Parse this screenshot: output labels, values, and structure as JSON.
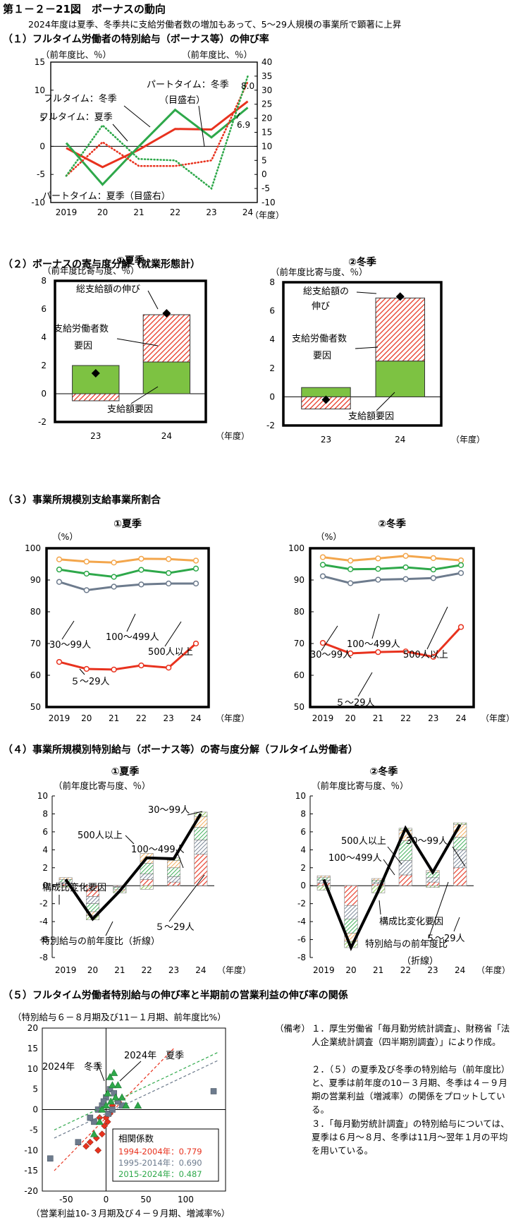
{
  "header": {
    "title": "第１－２－21図　ボーナスの動向",
    "subtitle": "2024年度は夏季、冬季共に支給労働者数の増加もあって、5～29人規模の事業所で顕著に上昇"
  },
  "sections": {
    "s1": "（１）フルタイム労働者の特別給与（ボーナス等）の伸び率",
    "s2": "（２）ボーナスの寄与度分解（就業形態計）",
    "s3": "（３）事業所規模別支給事業所割合",
    "s4": "（４）事業所規模別特別給与（ボーナス等）の寄与度分解（フルタイム労働者）",
    "s5": "（５）フルタイム労働者特別給与の伸び率と半期前の営業利益の伸び率の関係"
  },
  "colors": {
    "red": "#e8321e",
    "green": "#2ea84a",
    "gray": "#6d7b8d",
    "orange": "#f3a64c",
    "lime": "#7dc242",
    "black": "#000000"
  },
  "chart_data": [
    {
      "id": "c1",
      "type": "line",
      "x": [
        2019,
        2020,
        2021,
        2022,
        2023,
        2024
      ],
      "xticks": [
        "2019",
        "20",
        "21",
        "22",
        "23",
        "24"
      ],
      "xunit": "（年度）",
      "ylabel_left": "（前年度比、％）",
      "ylabel_right": "（前年度比、％）",
      "ylim_left": [
        -10,
        15
      ],
      "yticks_left": [
        -10,
        -5,
        0,
        5,
        10,
        15
      ],
      "ylim_right": [
        -10,
        40
      ],
      "yticks_right": [
        -10,
        -5,
        0,
        5,
        10,
        15,
        20,
        25,
        30,
        35,
        40
      ],
      "series": [
        {
          "name": "フルタイム：冬季",
          "axis": "left",
          "style": "solid",
          "color": "red",
          "values": [
            -0.3,
            -3.7,
            -0.6,
            3.1,
            3.0,
            8.0
          ]
        },
        {
          "name": "フルタイム：夏季",
          "axis": "left",
          "style": "solid",
          "color": "green",
          "values": [
            0.6,
            -6.8,
            0.0,
            6.5,
            1.6,
            6.9
          ]
        },
        {
          "name": "パートタイム：冬季（目盛右）",
          "axis": "right",
          "style": "dotted",
          "color": "red",
          "values": [
            -0.5,
            11.5,
            3.0,
            3.0,
            5.0,
            33.0
          ]
        },
        {
          "name": "パートタイム：夏季（目盛右）",
          "axis": "right",
          "style": "dotted",
          "color": "green",
          "values": [
            -0.5,
            17.5,
            5.5,
            5.0,
            -5.0,
            35.0
          ]
        }
      ],
      "annotations": [
        "8.0",
        "6.9"
      ]
    },
    {
      "id": "c2a",
      "type": "stacked-bar",
      "subtitle": "①夏季",
      "ylabel": "（前年度比寄与度、％）",
      "xunit": "（年度）",
      "categories": [
        "23",
        "24"
      ],
      "ylim": [
        -2,
        8
      ],
      "yticks": [
        -2,
        0,
        2,
        4,
        6,
        8
      ],
      "series": [
        {
          "name": "支給額要因",
          "values": [
            2.0,
            2.25
          ]
        },
        {
          "name": "支給労働者数要因",
          "values": [
            -0.5,
            3.35
          ]
        }
      ],
      "total": {
        "name": "総支給額の伸び",
        "values": [
          1.45,
          5.7
        ]
      }
    },
    {
      "id": "c2b",
      "type": "stacked-bar",
      "subtitle": "②冬季",
      "ylabel": "（前年度比寄与度、％）",
      "xunit": "（年度）",
      "categories": [
        "23",
        "24"
      ],
      "ylim": [
        -2,
        8
      ],
      "yticks": [
        -2,
        0,
        2,
        4,
        6,
        8
      ],
      "series": [
        {
          "name": "支給額要因",
          "values": [
            0.65,
            2.5
          ]
        },
        {
          "name": "支給労働者数要因",
          "values": [
            -0.85,
            4.4
          ]
        }
      ],
      "total": {
        "name": "総支給額の伸び",
        "values": [
          -0.2,
          7.0
        ]
      }
    },
    {
      "id": "c3a",
      "type": "line",
      "subtitle": "①夏季",
      "ylabel": "（%）",
      "xunit": "（年度）",
      "xticks": [
        "2019",
        "20",
        "21",
        "22",
        "23",
        "24"
      ],
      "ylim": [
        50,
        100
      ],
      "yticks": [
        50,
        60,
        70,
        80,
        90,
        100
      ],
      "series": [
        {
          "name": "500人以上",
          "color": "orange",
          "values": [
            96.5,
            95.8,
            95.5,
            96.7,
            96.6,
            96.1
          ]
        },
        {
          "name": "100～499人",
          "color": "green",
          "values": [
            93.3,
            92.0,
            91.0,
            93.2,
            92.2,
            93.6
          ]
        },
        {
          "name": "30～99人",
          "color": "gray",
          "values": [
            89.4,
            86.8,
            87.9,
            88.6,
            88.9,
            88.9
          ]
        },
        {
          "name": "５～29人",
          "color": "red",
          "values": [
            64.2,
            62.0,
            61.8,
            63.1,
            62.4,
            70.0
          ]
        }
      ]
    },
    {
      "id": "c3b",
      "type": "line",
      "subtitle": "②冬季",
      "ylabel": "（%）",
      "xunit": "（年度）",
      "xticks": [
        "2019",
        "20",
        "21",
        "22",
        "23",
        "24"
      ],
      "ylim": [
        50,
        100
      ],
      "yticks": [
        50,
        60,
        70,
        80,
        90,
        100
      ],
      "series": [
        {
          "name": "500人以上",
          "color": "orange",
          "values": [
            97.2,
            96.1,
            96.8,
            97.6,
            96.9,
            96.2
          ]
        },
        {
          "name": "100～499人",
          "color": "green",
          "values": [
            94.8,
            93.4,
            93.5,
            94.0,
            93.3,
            94.7
          ]
        },
        {
          "name": "30～99人",
          "color": "gray",
          "values": [
            91.2,
            89.0,
            90.1,
            90.3,
            90.6,
            92.2
          ]
        },
        {
          "name": "５～29人",
          "color": "red",
          "values": [
            70.2,
            66.9,
            67.3,
            67.5,
            65.8,
            75.2
          ]
        }
      ]
    },
    {
      "id": "c4a",
      "type": "stacked-bar",
      "subtitle": "①夏季",
      "ylabel": "（前年度比寄与度、％）",
      "xunit": "（年度）",
      "categories": [
        "2019",
        "20",
        "21",
        "22",
        "23",
        "24"
      ],
      "ylim": [
        -8,
        10
      ],
      "yticks": [
        -8,
        -6,
        -4,
        -2,
        0,
        2,
        4,
        6,
        8,
        10
      ],
      "series": [
        {
          "name": "５～29人",
          "color": "red",
          "values": [
            0.2,
            -1.2,
            -0.1,
            0.7,
            0.4,
            3.5
          ]
        },
        {
          "name": "30～99人",
          "color": "gray",
          "values": [
            0.2,
            -0.8,
            -0.1,
            0.6,
            0.6,
            1.6
          ]
        },
        {
          "name": "100～499人",
          "color": "green",
          "values": [
            0.3,
            -0.9,
            -0.2,
            1.2,
            1.0,
            1.4
          ]
        },
        {
          "name": "500人以上",
          "color": "orange",
          "values": [
            0.2,
            -0.4,
            -0.2,
            1.1,
            0.8,
            1.2
          ]
        },
        {
          "name": "構成比変化要因",
          "color": "lime",
          "values": [
            -0.2,
            -0.5,
            -0.2,
            -0.4,
            0.3,
            0.5
          ]
        }
      ],
      "line": {
        "name": "特別給与の前年度比（折線）",
        "values": [
          0.7,
          -3.7,
          -0.6,
          3.1,
          3.0,
          8.0
        ]
      }
    },
    {
      "id": "c4b",
      "type": "stacked-bar",
      "subtitle": "②冬季",
      "ylabel": "（前年度比寄与度、％）",
      "xunit": "（年度）",
      "categories": [
        "2019",
        "20",
        "21",
        "22",
        "23",
        "24"
      ],
      "ylim": [
        -8,
        10
      ],
      "yticks": [
        -8,
        -6,
        -4,
        -2,
        0,
        2,
        4,
        6,
        8,
        10
      ],
      "series": [
        {
          "name": "５～29人",
          "color": "red",
          "values": [
            0.3,
            -2.2,
            0.2,
            1.2,
            0.4,
            2.0
          ]
        },
        {
          "name": "30～99人",
          "color": "gray",
          "values": [
            0.3,
            -1.5,
            0.2,
            1.6,
            0.5,
            2.0
          ]
        },
        {
          "name": "100～499人",
          "color": "green",
          "values": [
            0.3,
            -1.6,
            0.2,
            2.2,
            0.6,
            1.4
          ]
        },
        {
          "name": "500人以上",
          "color": "orange",
          "values": [
            0.2,
            -0.9,
            0.2,
            1.2,
            0.2,
            1.4
          ]
        },
        {
          "name": "構成比変化要因",
          "color": "lime",
          "values": [
            -0.5,
            -0.7,
            -0.8,
            0.2,
            -0.2,
            0.2
          ]
        }
      ],
      "line": {
        "name": "特別給与の前年度比（折線）",
        "values": [
          0.7,
          -6.9,
          -0.6,
          6.4,
          1.5,
          6.8
        ]
      }
    },
    {
      "id": "c5",
      "type": "scatter",
      "ylabel": "（特別給与６－８月期及び11－１月期、前年度比%）",
      "xlabel": "（営業利益10-３月期及び４－９月期、増減率%）",
      "xlim": [
        -80,
        150
      ],
      "xticks": [
        -50,
        0,
        50,
        100
      ],
      "ylim": [
        -20,
        20
      ],
      "yticks": [
        -20,
        -15,
        -10,
        -5,
        0,
        5,
        10,
        15,
        20
      ],
      "labels": [
        "2024年　冬季",
        "2024年　夏季"
      ],
      "legend_title": "相関係数",
      "series": [
        {
          "name": "1994-2004年：0.779",
          "marker": "diamond",
          "color": "red",
          "trend": [
            [
              -65,
              -15
            ],
            [
              85,
              15
            ]
          ],
          "points": [
            [
              -10,
              -10
            ],
            [
              -20,
              -8
            ],
            [
              -5,
              -6
            ],
            [
              -2,
              -4
            ],
            [
              2,
              -3
            ],
            [
              -8,
              -2
            ],
            [
              5,
              -1
            ],
            [
              -12,
              -7
            ],
            [
              8,
              1
            ],
            [
              15,
              2
            ],
            [
              0,
              -2
            ],
            [
              -25,
              -9
            ]
          ]
        },
        {
          "name": "1995-2014年：0.690",
          "marker": "square",
          "color": "gray",
          "trend": [
            [
              -65,
              -7
            ],
            [
              140,
              12
            ]
          ],
          "points": [
            [
              -70,
              -12
            ],
            [
              -35,
              -8
            ],
            [
              -15,
              -3
            ],
            [
              -10,
              0
            ],
            [
              -5,
              1
            ],
            [
              0,
              3
            ],
            [
              5,
              5
            ],
            [
              10,
              4
            ],
            [
              20,
              1
            ],
            [
              -20,
              -2
            ],
            [
              135,
              4.5
            ],
            [
              15,
              2
            ],
            [
              3,
              -1
            ],
            [
              -3,
              2
            ],
            [
              8,
              0
            ]
          ]
        },
        {
          "name": "2015-2024年：0.487",
          "marker": "triangle",
          "color": "green",
          "trend": [
            [
              -65,
              -5
            ],
            [
              140,
              14
            ]
          ],
          "points": [
            [
              5,
              8
            ],
            [
              10,
              9
            ],
            [
              15,
              6
            ],
            [
              20,
              3
            ],
            [
              2,
              4
            ],
            [
              6,
              2
            ],
            [
              25,
              1
            ],
            [
              0,
              1
            ],
            [
              -5,
              0
            ],
            [
              -15,
              -6
            ],
            [
              40,
              1
            ],
            [
              -8,
              -3
            ],
            [
              8,
              6
            ],
            [
              12,
              3
            ]
          ]
        }
      ]
    }
  ],
  "chart_labels": {
    "c1": [
      "パートタイム：冬季",
      "（目盛右）",
      "フルタイム：冬季",
      "フルタイム：夏季",
      "パートタイム：夏季（目盛右）"
    ],
    "c2a": [
      "総支給額の伸び",
      "支給労働者数",
      "要因",
      "支給額要因"
    ],
    "c2b": [
      "総支給額の",
      "伸び",
      "支給労働者数",
      "要因",
      "支給額要因"
    ],
    "c3a": [
      "500人以上",
      "100～499人",
      "30～99人",
      "５～29人"
    ],
    "c3b": [
      "100～499人",
      "30～99人",
      "500人以上",
      "５～29人"
    ],
    "c4a": [
      "30～99人",
      "500人以上",
      "100～499人",
      "構成比変化要因",
      "５～29人",
      "特別給与の前年度比（折線）"
    ],
    "c4b": [
      "500人以上",
      "30～99人",
      "100～499人",
      "構成比変化要因",
      "５～29人",
      "特別給与の前年度比",
      "（折線）"
    ]
  },
  "notes": {
    "label": "（備考）",
    "items": [
      "１．厚生労働省「毎月勤労統計調査」、財務省「法人企業統計調査（四半期別調査）」により作成。",
      "２．（５）の夏季及び冬季の特別給与（前年度比）と、夏季は前年度の10－３月期、冬季は４－９月期の営業利益（増減率）の関係をプロットしている。",
      "３．「毎月勤労統計調査」の特別給与については、夏季は６月～８月、冬季は11月～翌年１月の平均を用いている。"
    ]
  }
}
